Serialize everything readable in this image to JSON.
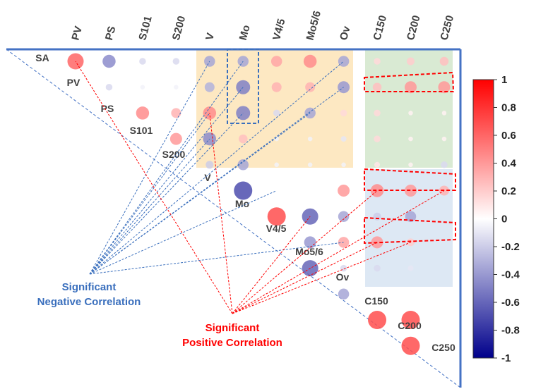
{
  "chart_data": {
    "type": "heatmap",
    "subtype": "correlation-matrix-upper-triangle",
    "variables": [
      "SA",
      "PV",
      "PS",
      "S101",
      "S200",
      "V",
      "Mo",
      "V4/5",
      "Mo5/6",
      "Ov",
      "C150",
      "C200",
      "C250"
    ],
    "column_labels": [
      "PV",
      "PS",
      "S101",
      "S200",
      "V",
      "Mo",
      "V4/5",
      "Mo5/6",
      "Ov",
      "C150",
      "C200",
      "C250"
    ],
    "row_labels": [
      "SA",
      "PV",
      "PS",
      "S101",
      "S200",
      "V",
      "Mo",
      "V4/5",
      "Mo5/6",
      "Ov",
      "C150",
      "C200",
      "C250"
    ],
    "matrix": [
      [
        null,
        0.6,
        -0.45,
        -0.15,
        -0.15,
        -0.35,
        -0.35,
        0.35,
        0.45,
        -0.35,
        0.15,
        0.2,
        0.25
      ],
      [
        null,
        null,
        -0.15,
        -0.05,
        -0.05,
        -0.3,
        -0.5,
        0.3,
        0.3,
        -0.4,
        0.25,
        0.4,
        0.4
      ],
      [
        null,
        null,
        null,
        0.45,
        0.3,
        0.45,
        -0.5,
        -0.15,
        -0.35,
        0.15,
        0.15,
        0.05,
        0.05
      ],
      [
        null,
        null,
        null,
        null,
        0.4,
        -0.45,
        0.25,
        -0.05,
        -0.05,
        -0.1,
        0.15,
        0.05,
        0.05
      ],
      [
        null,
        null,
        null,
        null,
        null,
        -0.2,
        -0.35,
        -0.05,
        -0.05,
        -0.05,
        0.1,
        0.05,
        -0.15
      ],
      [
        null,
        null,
        null,
        null,
        null,
        null,
        -0.7,
        null,
        null,
        0.4,
        0.45,
        0.4,
        0.3
      ],
      [
        null,
        null,
        null,
        null,
        null,
        null,
        null,
        0.7,
        -0.6,
        -0.35,
        -0.2,
        -0.35,
        null
      ],
      [
        null,
        null,
        null,
        null,
        null,
        null,
        null,
        null,
        -0.4,
        0.35,
        0.4,
        0.2,
        null
      ],
      [
        null,
        null,
        null,
        null,
        null,
        null,
        null,
        null,
        -0.6,
        -0.15,
        -0.15,
        -0.1,
        null
      ],
      [
        null,
        null,
        null,
        null,
        null,
        null,
        null,
        null,
        null,
        -0.35,
        null,
        null,
        null
      ],
      [
        null,
        null,
        null,
        null,
        null,
        null,
        null,
        null,
        null,
        null,
        0.7,
        0.7,
        null
      ],
      [
        null,
        null,
        null,
        null,
        null,
        null,
        null,
        null,
        null,
        null,
        null,
        0.7,
        null
      ],
      [
        null,
        null,
        null,
        null,
        null,
        null,
        null,
        null,
        null,
        null,
        null,
        null,
        null
      ]
    ],
    "colorbar": {
      "range": [
        -1,
        1
      ],
      "ticks": [
        "1",
        "0.8",
        "0.6",
        "0.4",
        "0.2",
        "0",
        "-0.2",
        "-0.4",
        "-0.6",
        "-0.8",
        "-1"
      ],
      "colors": {
        "low": "#00008b",
        "mid": "#ffffff",
        "high": "#ff0000"
      }
    },
    "annotations": {
      "negative_label": [
        "Significant",
        "Negative Correlation"
      ],
      "positive_label": [
        "Significant",
        "Positive Correlation"
      ],
      "negative_color": "#3a6fbd",
      "positive_color": "#ff0000"
    },
    "highlight_regions": {
      "orange": "#fde8c2",
      "green": "#d9ead3",
      "blue": "#dde8f4"
    },
    "grid": false,
    "legend": "right"
  }
}
